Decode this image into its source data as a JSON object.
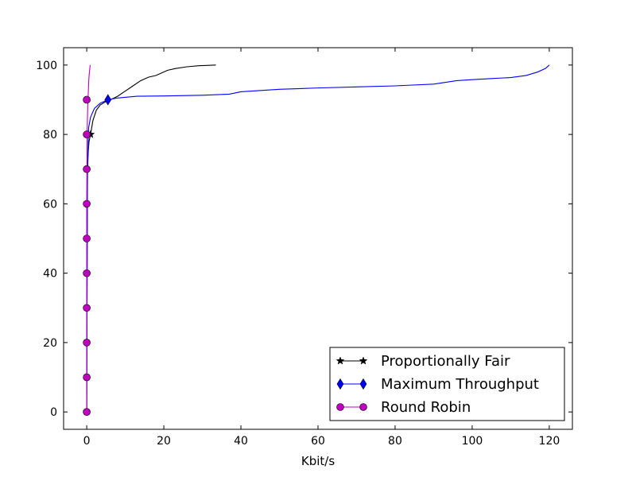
{
  "chart_data": {
    "type": "line",
    "title": "",
    "xlabel": "Kbit/s",
    "ylabel": "",
    "xlim": [
      -6,
      126
    ],
    "ylim": [
      -5,
      105
    ],
    "x_ticks": [
      0,
      20,
      40,
      60,
      80,
      100,
      120
    ],
    "y_ticks": [
      0,
      20,
      40,
      60,
      80,
      100
    ],
    "grid": false,
    "legend_position": "lower-right",
    "series": [
      {
        "name": "Proportionally Fair",
        "color": "#000000",
        "marker": "star",
        "marker_points": [
          [
            1.0,
            80
          ]
        ],
        "points": [
          [
            0,
            0
          ],
          [
            0.1,
            40
          ],
          [
            0.15,
            60
          ],
          [
            0.2,
            70
          ],
          [
            0.4,
            75
          ],
          [
            0.6,
            78
          ],
          [
            1.0,
            80
          ],
          [
            1.6,
            84
          ],
          [
            2.5,
            87
          ],
          [
            3.5,
            88.5
          ],
          [
            5.0,
            89.5
          ],
          [
            6.5,
            90.2
          ],
          [
            8.0,
            91
          ],
          [
            10.0,
            92.5
          ],
          [
            12.0,
            94
          ],
          [
            14.0,
            95.5
          ],
          [
            16.0,
            96.5
          ],
          [
            18.0,
            97
          ],
          [
            20.0,
            98
          ],
          [
            21.0,
            98.5
          ],
          [
            23.0,
            99
          ],
          [
            26.0,
            99.5
          ],
          [
            29.0,
            99.8
          ],
          [
            33.5,
            100
          ]
        ]
      },
      {
        "name": "Maximum Throughput",
        "color": "#0000ff",
        "marker": "diamond",
        "marker_points": [
          [
            5.5,
            90
          ]
        ],
        "points": [
          [
            0,
            0
          ],
          [
            0.2,
            70
          ],
          [
            0.5,
            82
          ],
          [
            1.0,
            85
          ],
          [
            2.0,
            87.5
          ],
          [
            3.5,
            89
          ],
          [
            5.5,
            90
          ],
          [
            8.0,
            90.5
          ],
          [
            11.0,
            90.8
          ],
          [
            13.0,
            91
          ],
          [
            20.0,
            91.1
          ],
          [
            30.0,
            91.3
          ],
          [
            37.0,
            91.6
          ],
          [
            40.0,
            92.3
          ],
          [
            50.0,
            93
          ],
          [
            60.0,
            93.4
          ],
          [
            70.0,
            93.7
          ],
          [
            80.0,
            94
          ],
          [
            90.0,
            94.5
          ],
          [
            96.0,
            95.5
          ],
          [
            100.0,
            95.8
          ],
          [
            105.0,
            96.1
          ],
          [
            110.0,
            96.4
          ],
          [
            114.0,
            97
          ],
          [
            117.0,
            98
          ],
          [
            119.0,
            99
          ],
          [
            120.0,
            100
          ]
        ]
      },
      {
        "name": "Round Robin",
        "color": "#bf00bf",
        "marker": "circle",
        "marker_points": [
          [
            0,
            0
          ],
          [
            0,
            10
          ],
          [
            0,
            20
          ],
          [
            0,
            30
          ],
          [
            0,
            40
          ],
          [
            0,
            50
          ],
          [
            0,
            60
          ],
          [
            0,
            70
          ],
          [
            0,
            80
          ],
          [
            0,
            90
          ]
        ],
        "points": [
          [
            0,
            0
          ],
          [
            0,
            60
          ],
          [
            0.05,
            70
          ],
          [
            0.1,
            80
          ],
          [
            0.25,
            88
          ],
          [
            0.4,
            92
          ],
          [
            0.55,
            96
          ],
          [
            0.7,
            98
          ],
          [
            0.9,
            100
          ]
        ]
      }
    ]
  }
}
